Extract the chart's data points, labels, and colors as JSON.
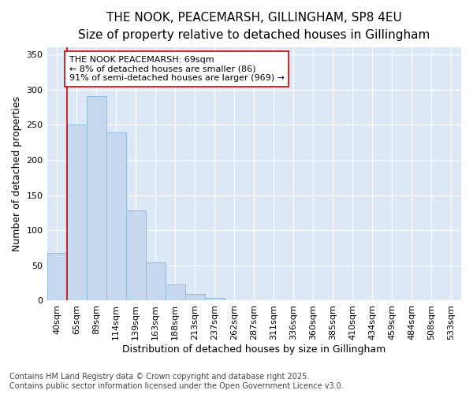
{
  "title": "THE NOOK, PEACEMARSH, GILLINGHAM, SP8 4EU",
  "subtitle": "Size of property relative to detached houses in Gillingham",
  "xlabel": "Distribution of detached houses by size in Gillingham",
  "ylabel": "Number of detached properties",
  "categories": [
    "40sqm",
    "65sqm",
    "89sqm",
    "114sqm",
    "139sqm",
    "163sqm",
    "188sqm",
    "213sqm",
    "237sqm",
    "262sqm",
    "287sqm",
    "311sqm",
    "336sqm",
    "360sqm",
    "385sqm",
    "410sqm",
    "434sqm",
    "459sqm",
    "484sqm",
    "508sqm",
    "533sqm"
  ],
  "values": [
    68,
    251,
    291,
    239,
    128,
    54,
    23,
    10,
    4,
    1,
    1,
    0,
    0,
    0,
    0,
    0,
    0,
    0,
    0,
    0,
    1
  ],
  "bar_color": "#c5d8ed",
  "bar_edge_color": "#90bcd8",
  "vline_x": 0.5,
  "vline_color": "#cc0000",
  "annotation_text": "THE NOOK PEACEMARSH: 69sqm\n← 8% of detached houses are smaller (86)\n91% of semi-detached houses are larger (969) →",
  "annotation_box_facecolor": "#ffffff",
  "annotation_box_edgecolor": "#cc0000",
  "ylim": [
    0,
    360
  ],
  "yticks": [
    0,
    50,
    100,
    150,
    200,
    250,
    300,
    350
  ],
  "background_color": "#ffffff",
  "plot_background_color": "#dce8f5",
  "grid_color": "#ffffff",
  "title_fontsize": 11,
  "subtitle_fontsize": 10,
  "axis_label_fontsize": 9,
  "tick_fontsize": 8,
  "annotation_fontsize": 8,
  "footer_fontsize": 7,
  "footer_text": "Contains HM Land Registry data © Crown copyright and database right 2025.\nContains public sector information licensed under the Open Government Licence v3.0."
}
